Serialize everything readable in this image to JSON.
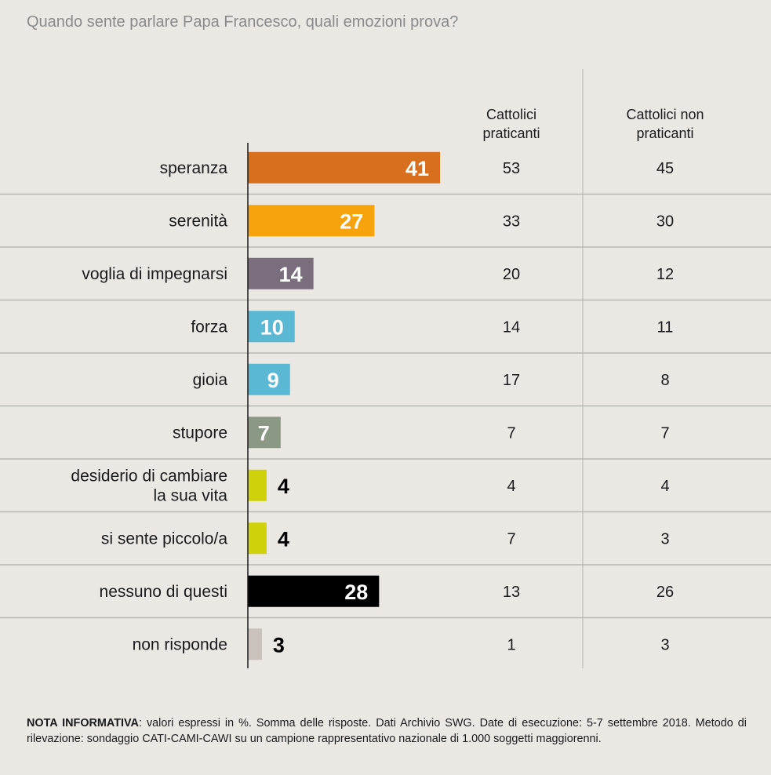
{
  "title": "Quando sente parlare Papa Francesco, quali emozioni prova?",
  "chart_data": {
    "type": "bar",
    "orientation": "horizontal",
    "title": "Quando sente parlare Papa Francesco, quali emozioni prova?",
    "unit": "%",
    "categories": [
      [
        "speranza"
      ],
      [
        "serenità"
      ],
      [
        "voglia di impegnarsi"
      ],
      [
        "forza"
      ],
      [
        "gioia"
      ],
      [
        "stupore"
      ],
      [
        "desiderio di cambiare",
        "la sua vita"
      ],
      [
        "si sente piccolo/a"
      ],
      [
        "nessuno di questi"
      ],
      [
        "non risponde"
      ]
    ],
    "values": [
      41,
      27,
      14,
      10,
      9,
      7,
      4,
      4,
      28,
      3
    ],
    "colors": [
      "#d86f1e",
      "#f6a30e",
      "#7a6e7d",
      "#5ab8d5",
      "#5ab8d5",
      "#8c9886",
      "#cfd20a",
      "#cfd20a",
      "#000000",
      "#c9c2bc"
    ],
    "label_colors": [
      "#ffffff",
      "#ffffff",
      "#ffffff",
      "#ffffff",
      "#ffffff",
      "#ffffff",
      "#000000",
      "#000000",
      "#ffffff",
      "#000000"
    ],
    "xlim": [
      0,
      41
    ],
    "columns": [
      {
        "header": [
          "Cattolici",
          "praticanti"
        ],
        "values": [
          53,
          33,
          20,
          14,
          17,
          7,
          4,
          7,
          13,
          1
        ]
      },
      {
        "header": [
          "Cattolici non",
          "praticanti"
        ],
        "values": [
          45,
          30,
          12,
          11,
          8,
          7,
          4,
          3,
          26,
          3
        ]
      }
    ]
  },
  "note": {
    "label": "NOTA INFORMATIVA",
    "text": ": valori espressi in %. Somma delle risposte. Dati Archivio SWG. Date di esecuzione: 5-7 settembre 2018. Metodo di rilevazione: sondaggio CATI-CAMI-CAWI su un campione rappresentativo nazionale di 1.000 soggetti maggiorenni."
  }
}
